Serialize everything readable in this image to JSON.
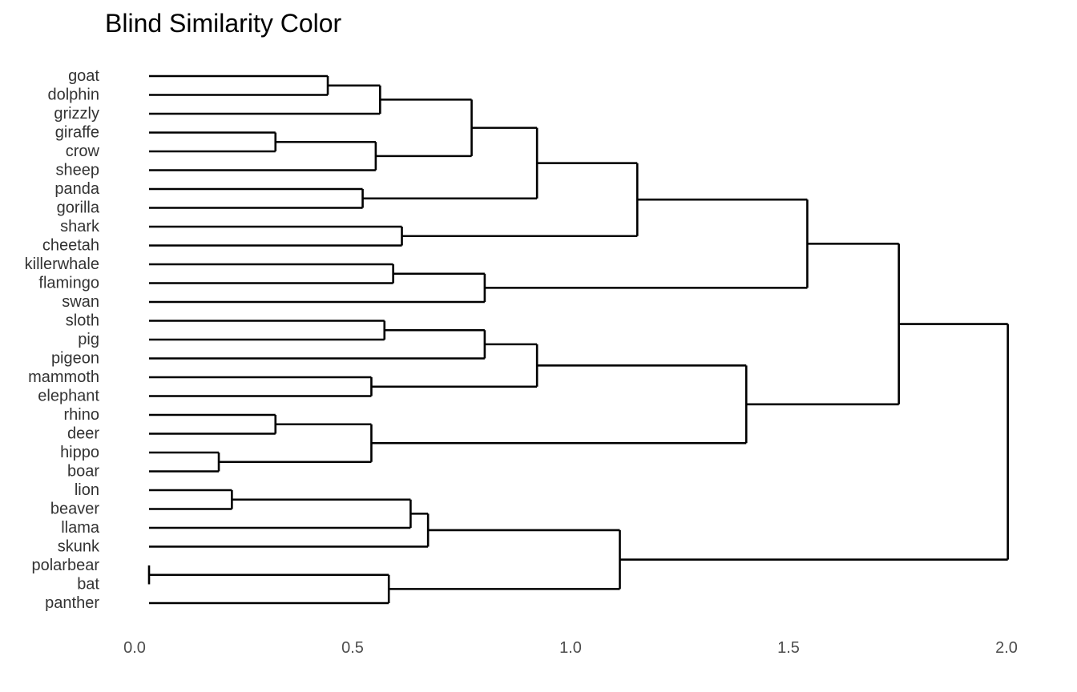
{
  "chart_data": {
    "type": "dendrogram",
    "title": "Blind Similarity Color",
    "xlabel": "",
    "ylabel": "",
    "xlim": [
      0.0,
      2.0
    ],
    "x_ticks": [
      0.0,
      0.5,
      1.0,
      1.5,
      2.0
    ],
    "x_tick_labels": [
      "0.0",
      "0.5",
      "1.0",
      "1.5",
      "2.0"
    ],
    "grid": false,
    "leaves": [
      "goat",
      "dolphin",
      "grizzly",
      "giraffe",
      "crow",
      "sheep",
      "panda",
      "gorilla",
      "shark",
      "cheetah",
      "killerwhale",
      "flamingo",
      "swan",
      "sloth",
      "pig",
      "pigeon",
      "mammoth",
      "elephant",
      "rhino",
      "deer",
      "hippo",
      "boar",
      "lion",
      "beaver",
      "llama",
      "skunk",
      "polarbear",
      "bat",
      "panther"
    ],
    "merges": [
      {
        "left": "polarbear",
        "right": "bat",
        "height": 0.0
      },
      {
        "left": "hippo",
        "right": "boar",
        "height": 0.16
      },
      {
        "left": "lion",
        "right": "beaver",
        "height": 0.19
      },
      {
        "left": "rhino",
        "right": "deer",
        "height": 0.29
      },
      {
        "left": "giraffe",
        "right": "crow",
        "height": 0.29
      },
      {
        "left": "goat",
        "right": "dolphin",
        "height": 0.41
      },
      {
        "left": "panda",
        "right": "gorilla",
        "height": 0.49
      },
      {
        "left": "mammoth",
        "right": "elephant",
        "height": 0.51
      },
      {
        "left": "rhino+deer",
        "right": "hippo+boar",
        "height": 0.51
      },
      {
        "left": "goat+dolphin",
        "right": "grizzly",
        "height": 0.53
      },
      {
        "left": "giraffe+crow",
        "right": "sheep",
        "height": 0.52
      },
      {
        "left": "sloth",
        "right": "pig",
        "height": 0.54
      },
      {
        "left": "polarbear+bat",
        "right": "panther",
        "height": 0.55
      },
      {
        "left": "killerwhale",
        "right": "flamingo",
        "height": 0.56
      },
      {
        "left": "shark",
        "right": "cheetah",
        "height": 0.58
      },
      {
        "left": "lion+beaver",
        "right": "llama",
        "height": 0.6
      },
      {
        "left": "lion+beaver+llama",
        "right": "skunk",
        "height": 0.64
      },
      {
        "left": "goat+dolphin+grizzly",
        "right": "giraffe+crow+sheep",
        "height": 0.74
      },
      {
        "left": "killerwhale+flamingo",
        "right": "swan",
        "height": 0.77
      },
      {
        "left": "sloth+pig",
        "right": "pigeon",
        "height": 0.77
      },
      {
        "left": "goat..sheep",
        "right": "panda+gorilla",
        "height": 0.89
      },
      {
        "left": "sloth+pig+pigeon",
        "right": "mammoth+elephant",
        "height": 0.89
      },
      {
        "left": "lion..skunk",
        "right": "polarbear+bat+panther",
        "height": 1.08
      },
      {
        "left": "goat..gorilla",
        "right": "shark+cheetah",
        "height": 1.12
      },
      {
        "left": "sloth..elephant",
        "right": "rhino..boar",
        "height": 1.37
      },
      {
        "left": "goat..cheetah",
        "right": "killerwhale+flamingo+swan",
        "height": 1.51
      },
      {
        "left": "goat..swan",
        "right": "sloth..boar",
        "height": 1.72
      },
      {
        "left": "goat..boar",
        "right": "lion..panther",
        "height": 1.97
      }
    ]
  }
}
